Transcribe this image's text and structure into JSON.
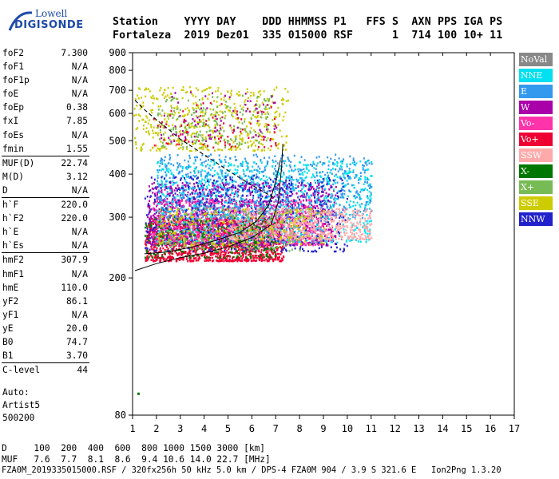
{
  "logo": {
    "line1": "Lowell",
    "line2": "DIGISONDE"
  },
  "header": {
    "line1": "Station    YYYY DAY    DDD HHMMSS P1   FFS S  AXN PPS IGA PS",
    "line2": "Fortaleza  2019 Dez01  335 015000 RSF      1  714 100 10+ 11"
  },
  "params": [
    {
      "label": "foF2",
      "value": "7.300"
    },
    {
      "label": "foF1",
      "value": "N/A"
    },
    {
      "label": "foF1p",
      "value": "N/A"
    },
    {
      "label": "foE",
      "value": "N/A"
    },
    {
      "label": "foEp",
      "value": "0.38"
    },
    {
      "label": "fxI",
      "value": "7.85"
    },
    {
      "label": "foEs",
      "value": "N/A"
    },
    {
      "label": "fmin",
      "value": "1.55"
    },
    {
      "label": "MUF(D)",
      "value": "22.74",
      "sep": true
    },
    {
      "label": "M(D)",
      "value": "3.12"
    },
    {
      "label": "D",
      "value": "N/A"
    },
    {
      "label": "h`F",
      "value": "220.0",
      "sep": true
    },
    {
      "label": "h`F2",
      "value": "220.0"
    },
    {
      "label": "h`E",
      "value": "N/A"
    },
    {
      "label": "h`Es",
      "value": "N/A"
    },
    {
      "label": "hmF2",
      "value": "307.9",
      "sep": true
    },
    {
      "label": "hmF1",
      "value": "N/A"
    },
    {
      "label": "hmE",
      "value": "110.0"
    },
    {
      "label": "yF2",
      "value": "86.1"
    },
    {
      "label": "yF1",
      "value": "N/A"
    },
    {
      "label": "yE",
      "value": "20.0"
    },
    {
      "label": "B0",
      "value": "74.7"
    },
    {
      "label": "B1",
      "value": "3.70"
    },
    {
      "label": "C-level",
      "value": "44",
      "sep": true
    }
  ],
  "auto": {
    "line1": "Auto:",
    "line2": "Artist5",
    "line3": "500200"
  },
  "bottom": {
    "d_row": "D     100  200  400  600  800 1000 1500 3000 [km]",
    "muf_row": "MUF   7.6  7.7  8.1  8.6  9.4 10.6 14.0 22.7 [MHz]",
    "footer": "FZA0M_2019335015000.RSF / 320fx256h 50 kHz 5.0 km / DPS-4 FZA0M 904 / 3.9 S 321.6 E   Ion2Png 1.3.20"
  },
  "legend": [
    {
      "label": "NoVal",
      "color": "#888888"
    },
    {
      "label": "NNE",
      "color": "#00e0f0"
    },
    {
      "label": "E",
      "color": "#3399ee"
    },
    {
      "label": "W",
      "color": "#aa00aa"
    },
    {
      "label": "Vo-",
      "color": "#ff33aa"
    },
    {
      "label": "Vo+",
      "color": "#ee0033"
    },
    {
      "label": "SSW",
      "color": "#ffaaaa"
    },
    {
      "label": "X-",
      "color": "#007700"
    },
    {
      "label": "X+",
      "color": "#77bb55"
    },
    {
      "label": "SSE",
      "color": "#cccc00"
    },
    {
      "label": "NNW",
      "color": "#2222cc"
    }
  ],
  "chart_data": {
    "type": "scatter",
    "xlim": [
      1,
      17
    ],
    "ylim": [
      80,
      900
    ],
    "y_scale": "log",
    "x_ticks": [
      1,
      2,
      3,
      4,
      5,
      6,
      7,
      8,
      9,
      10,
      11,
      12,
      13,
      14,
      15,
      16,
      17
    ],
    "y_ticks": [
      80,
      200,
      300,
      400,
      500,
      600,
      700,
      800,
      900
    ],
    "grid": false,
    "dashed_curve": [
      [
        1.1,
        655
      ],
      [
        1.5,
        615
      ],
      [
        2,
        575
      ],
      [
        2.5,
        540
      ],
      [
        3,
        505
      ],
      [
        3.5,
        480
      ],
      [
        4,
        455
      ],
      [
        4.5,
        432
      ],
      [
        5,
        410
      ],
      [
        5.5,
        390
      ],
      [
        6,
        372
      ],
      [
        6.5,
        355
      ],
      [
        7,
        340
      ]
    ],
    "profile_curve": [
      [
        1.1,
        210
      ],
      [
        2,
        220
      ],
      [
        3,
        229
      ],
      [
        4,
        236
      ],
      [
        5,
        246
      ],
      [
        6,
        262
      ],
      [
        6.8,
        285
      ],
      [
        7.1,
        330
      ],
      [
        7.25,
        420
      ],
      [
        7.3,
        490
      ]
    ],
    "trace_curve": [
      [
        1.5,
        235
      ],
      [
        2.5,
        238
      ],
      [
        3.5,
        246
      ],
      [
        4.5,
        257
      ],
      [
        5.5,
        271
      ],
      [
        6.2,
        292
      ],
      [
        6.7,
        325
      ],
      [
        7.0,
        380
      ],
      [
        7.2,
        440
      ]
    ],
    "clusters": [
      {
        "series": "Vo+",
        "x": [
          1.5,
          7.3
        ],
        "y": [
          225,
          300
        ],
        "n": 1400
      },
      {
        "series": "W",
        "x": [
          1.6,
          9.5
        ],
        "y": [
          250,
          380
        ],
        "n": 1300
      },
      {
        "series": "Vo-",
        "x": [
          1.8,
          9.0
        ],
        "y": [
          250,
          340
        ],
        "n": 900
      },
      {
        "series": "NNE",
        "x": [
          2.0,
          11.0
        ],
        "y": [
          255,
          440
        ],
        "n": 1000
      },
      {
        "series": "E",
        "x": [
          2.0,
          11.0
        ],
        "y": [
          300,
          460
        ],
        "n": 700
      },
      {
        "series": "NNW",
        "x": [
          1.5,
          10.0
        ],
        "y": [
          240,
          400
        ],
        "n": 500
      },
      {
        "series": "SSW",
        "x": [
          5.0,
          11.0
        ],
        "y": [
          260,
          320
        ],
        "n": 600
      },
      {
        "series": "X-",
        "x": [
          1.5,
          7.0
        ],
        "y": [
          230,
          300
        ],
        "n": 220
      },
      {
        "series": "X+",
        "x": [
          2.0,
          8.0
        ],
        "y": [
          240,
          320
        ],
        "n": 200
      },
      {
        "series": "SSE",
        "x": [
          2.0,
          9.0
        ],
        "y": [
          250,
          320
        ],
        "n": 250
      },
      {
        "series": "SSE",
        "x": [
          1.0,
          7.5
        ],
        "y": [
          470,
          720
        ],
        "n": 500
      },
      {
        "series": "X+",
        "x": [
          2.0,
          6.8
        ],
        "y": [
          480,
          680
        ],
        "n": 200
      },
      {
        "series": "W",
        "x": [
          2.0,
          7.0
        ],
        "y": [
          500,
          700
        ],
        "n": 80
      },
      {
        "series": "Vo+",
        "x": [
          1.8,
          7.0
        ],
        "y": [
          480,
          650
        ],
        "n": 80
      }
    ]
  }
}
